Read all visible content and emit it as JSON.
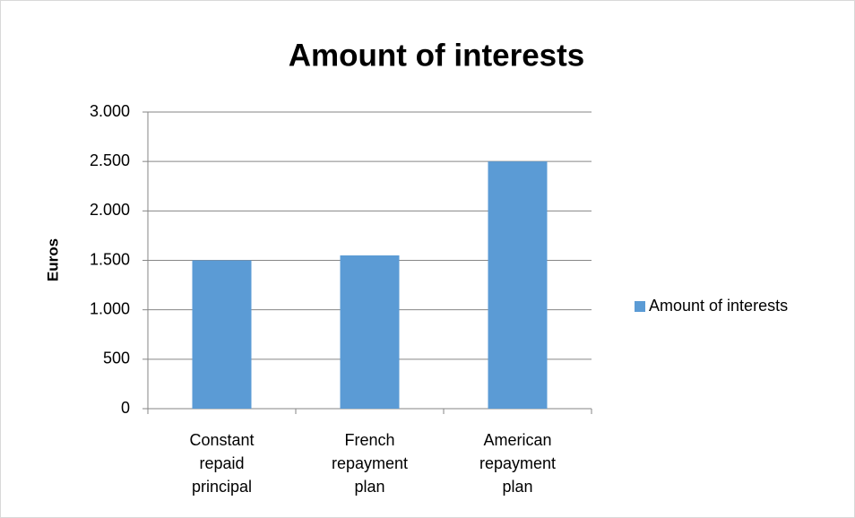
{
  "chart_data": {
    "type": "bar",
    "title": "Amount of interests",
    "y_label": "Euros",
    "categories": [
      "Constant repaid principal",
      "French repayment plan",
      "American repayment plan"
    ],
    "series": [
      {
        "name": "Amount of interests",
        "color": "#5b9bd5",
        "values": [
          1500,
          1550,
          2500
        ]
      }
    ],
    "ylim": [
      0,
      3000
    ],
    "yticks": [
      0,
      500,
      {
        "value": 1000,
        "label": "1.000"
      },
      {
        "value": 1500,
        "label": "1.500"
      },
      {
        "value": 2000,
        "label": "2.000"
      },
      {
        "value": 2500,
        "label": "2.500"
      },
      {
        "value": 3000,
        "label": "3.000"
      }
    ],
    "grid": true,
    "legend": "right"
  }
}
